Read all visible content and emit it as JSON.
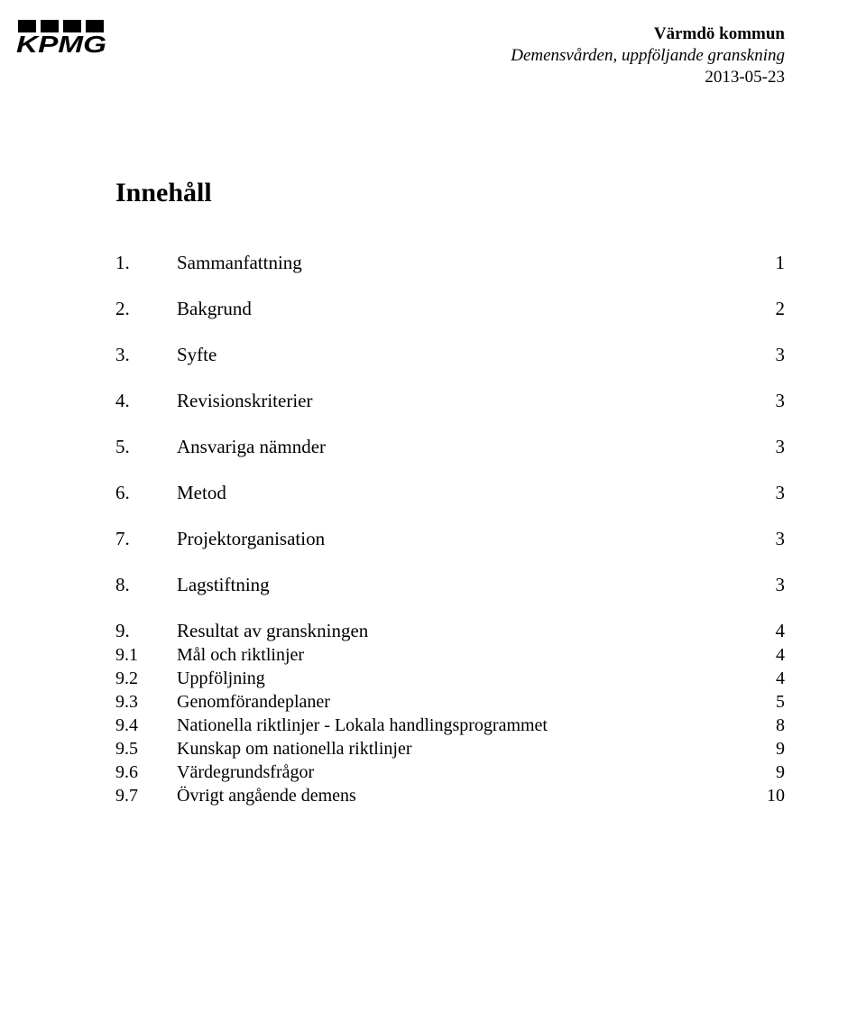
{
  "header": {
    "line1": "Värmdö kommun",
    "line2": "Demensvården, uppföljande granskning",
    "line3": "2013-05-23"
  },
  "logo": {
    "text": "KPMG",
    "box_fill": "#000000"
  },
  "toc": {
    "title": "Innehåll",
    "items": [
      {
        "num": "1.",
        "label": "Sammanfattning",
        "page": "1",
        "level": 1
      },
      {
        "num": "2.",
        "label": "Bakgrund",
        "page": "2",
        "level": 1
      },
      {
        "num": "3.",
        "label": "Syfte",
        "page": "3",
        "level": 1
      },
      {
        "num": "4.",
        "label": "Revisionskriterier",
        "page": "3",
        "level": 1
      },
      {
        "num": "5.",
        "label": "Ansvariga nämnder",
        "page": "3",
        "level": 1
      },
      {
        "num": "6.",
        "label": "Metod",
        "page": "3",
        "level": 1
      },
      {
        "num": "7.",
        "label": "Projektorganisation",
        "page": "3",
        "level": 1
      },
      {
        "num": "8.",
        "label": "Lagstiftning",
        "page": "3",
        "level": 1
      },
      {
        "num": "9.",
        "label": "Resultat av granskningen",
        "page": "4",
        "level": 1
      },
      {
        "num": "9.1",
        "label": "Mål och riktlinjer",
        "page": "4",
        "level": 2
      },
      {
        "num": "9.2",
        "label": "Uppföljning",
        "page": "4",
        "level": 2
      },
      {
        "num": "9.3",
        "label": "Genomförandeplaner",
        "page": "5",
        "level": 2
      },
      {
        "num": "9.4",
        "label": "Nationella riktlinjer - Lokala handlingsprogrammet",
        "page": "8",
        "level": 2
      },
      {
        "num": "9.5",
        "label": "Kunskap om nationella riktlinjer",
        "page": "9",
        "level": 2
      },
      {
        "num": "9.6",
        "label": "Värdegrundsfrågor",
        "page": "9",
        "level": 2
      },
      {
        "num": "9.7",
        "label": "Övrigt angående demens",
        "page": "10",
        "level": 2
      }
    ]
  },
  "colors": {
    "text": "#000000",
    "background": "#ffffff"
  },
  "typography": {
    "family": "Times New Roman",
    "title_size_pt": 22,
    "body_size_pt": 16
  }
}
